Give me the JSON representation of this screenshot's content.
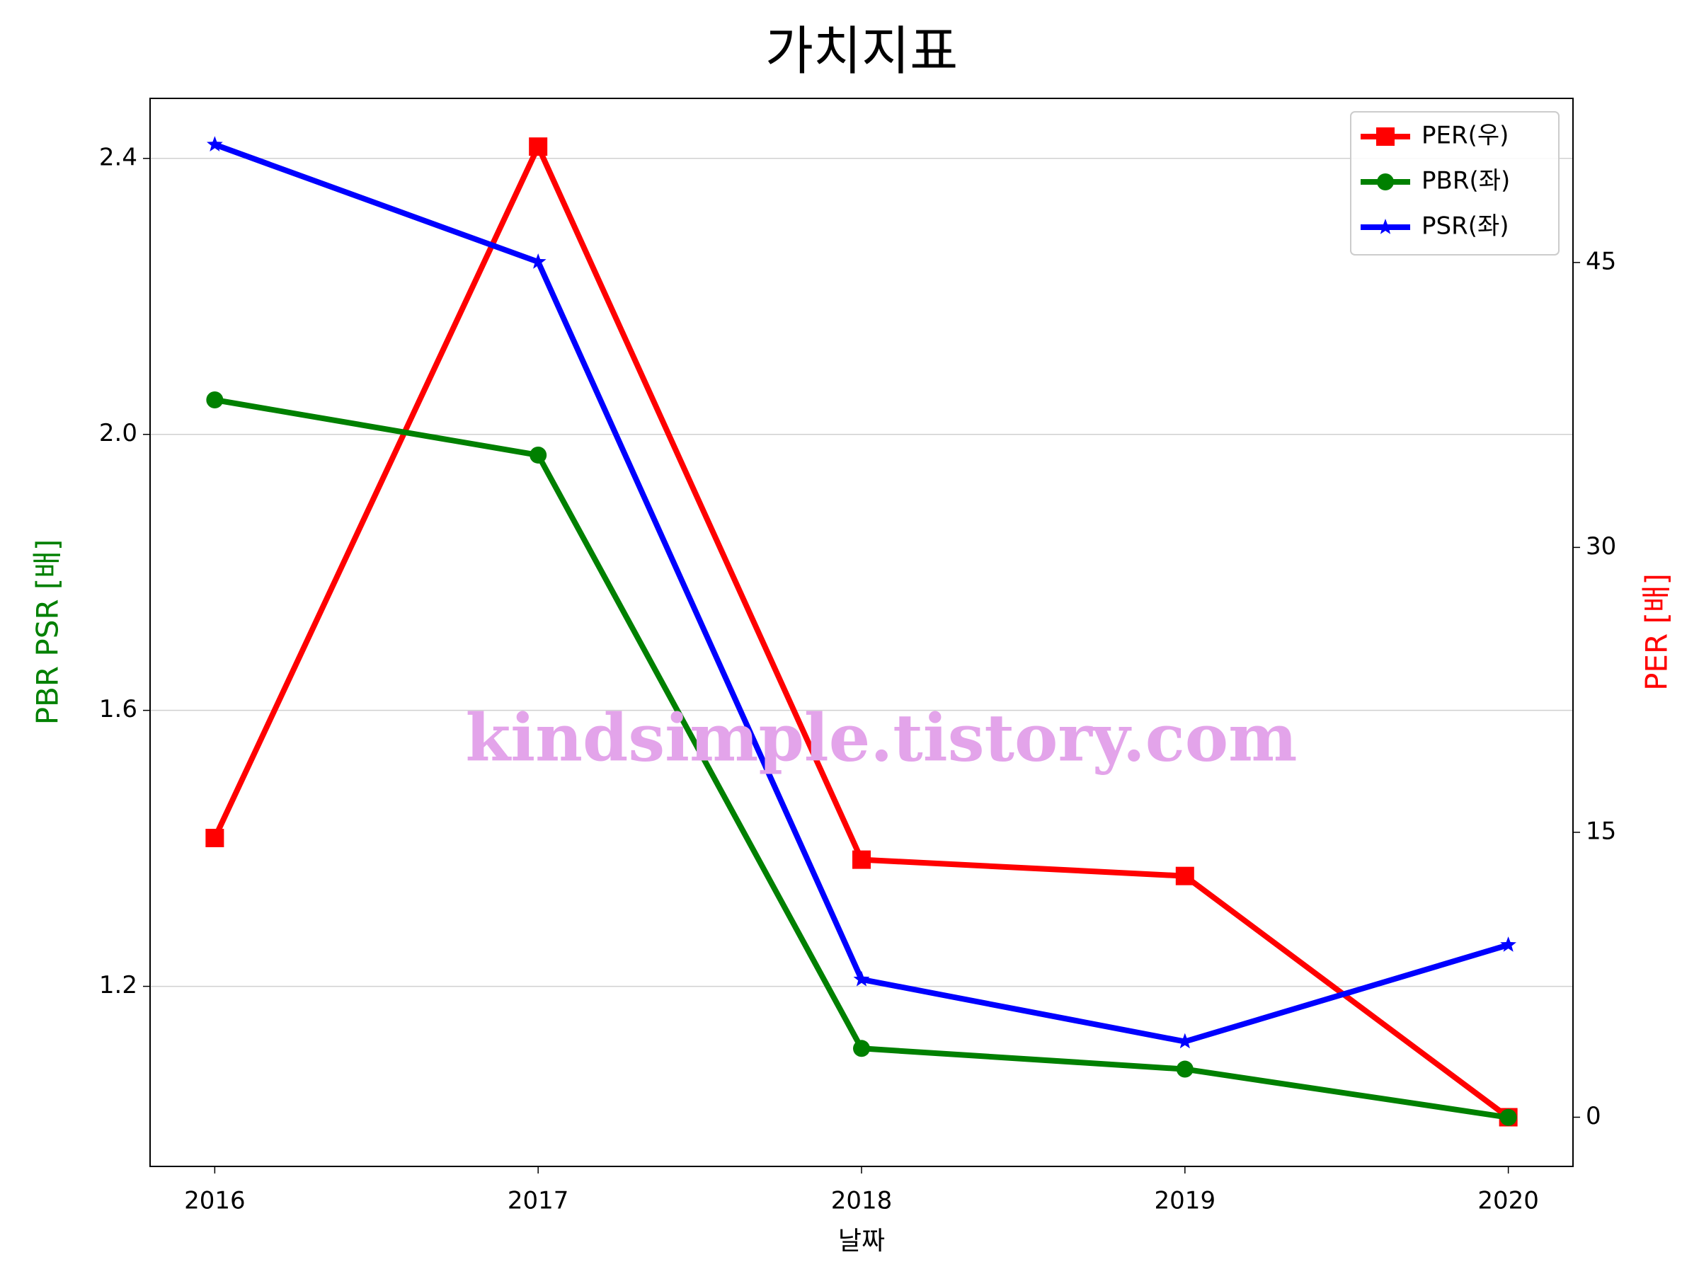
{
  "chart_data": {
    "type": "line",
    "title": "가치지표",
    "x_label": "날짜",
    "y_label": "PBR PSR [배]",
    "y2_label": "PER [배]",
    "watermark": "kindsimple.tistory.com",
    "x": [
      2016,
      2017,
      2018,
      2019,
      2020
    ],
    "xlim": [
      2015.8,
      2020.2
    ],
    "xticks": [
      2016,
      2017,
      2018,
      2019,
      2020
    ],
    "ylim": [
      0.939,
      2.487
    ],
    "yticks": [
      {
        "value": 1.2,
        "label": "1.2"
      },
      {
        "value": 1.6,
        "label": "1.6"
      },
      {
        "value": 2.0,
        "label": "2.0"
      },
      {
        "value": 2.4,
        "label": "2.4"
      }
    ],
    "y2lim": [
      -2.59,
      53.64
    ],
    "y2ticks": [
      0,
      15,
      30,
      45
    ],
    "grid": true,
    "legend": "upper right",
    "series": [
      {
        "name": "PER(우)",
        "color": "#ff0000",
        "marker": "square",
        "axis": "y2",
        "values": [
          14.7,
          51.1,
          13.56,
          12.7,
          0
        ]
      },
      {
        "name": "PBR(좌)",
        "color": "#008000",
        "marker": "circle",
        "values": [
          2.05,
          1.97,
          1.11,
          1.08,
          1.01
        ]
      },
      {
        "name": "PSR(좌)",
        "color": "#0000ff",
        "marker": "star",
        "values": [
          2.42,
          2.25,
          1.21,
          1.12,
          1.26
        ]
      }
    ]
  }
}
